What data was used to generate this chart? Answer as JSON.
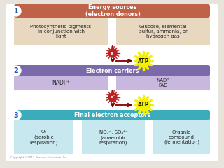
{
  "bg_color": "#e8e4dc",
  "box1_color": "#c0624a",
  "box1_text": "Energy sources\n(electron donors)",
  "box1_left_text": "Photosynthetic pigments\nin conjunction with\nlight",
  "box1_right_text": "Glucose, elemental\nsulfur, ammonia, or\nhydrogen gas",
  "box1_sub_color": "#e8d8c0",
  "box2_color": "#7b6aaa",
  "box2_text": "Electron carriers",
  "box2_left_text": "NADP⁺",
  "box2_right_text": "NAD⁺\nFAD",
  "box2_sub_color": "#c8b8e0",
  "box3_color": "#3aacbc",
  "box3_text": "Final electron acceptors",
  "box3_left_text": "O₂\n(aerobic\nrespiration)",
  "box3_mid_text": "NO₃⁻, SO₄²⁻\n(anaerobic\nrespiration)",
  "box3_right_text": "Organic\ncompound\n(fermentation)",
  "box3_sub_color": "#c8e8f0",
  "atp_color": "#f5f000",
  "atp_text": "ATP",
  "arrow_color": "#800000",
  "electron_color": "#bb2222",
  "circle_label": "e⁻",
  "num_color": "#2255aa",
  "copyright": "Copyright ©2013 Pearson Education, Inc."
}
